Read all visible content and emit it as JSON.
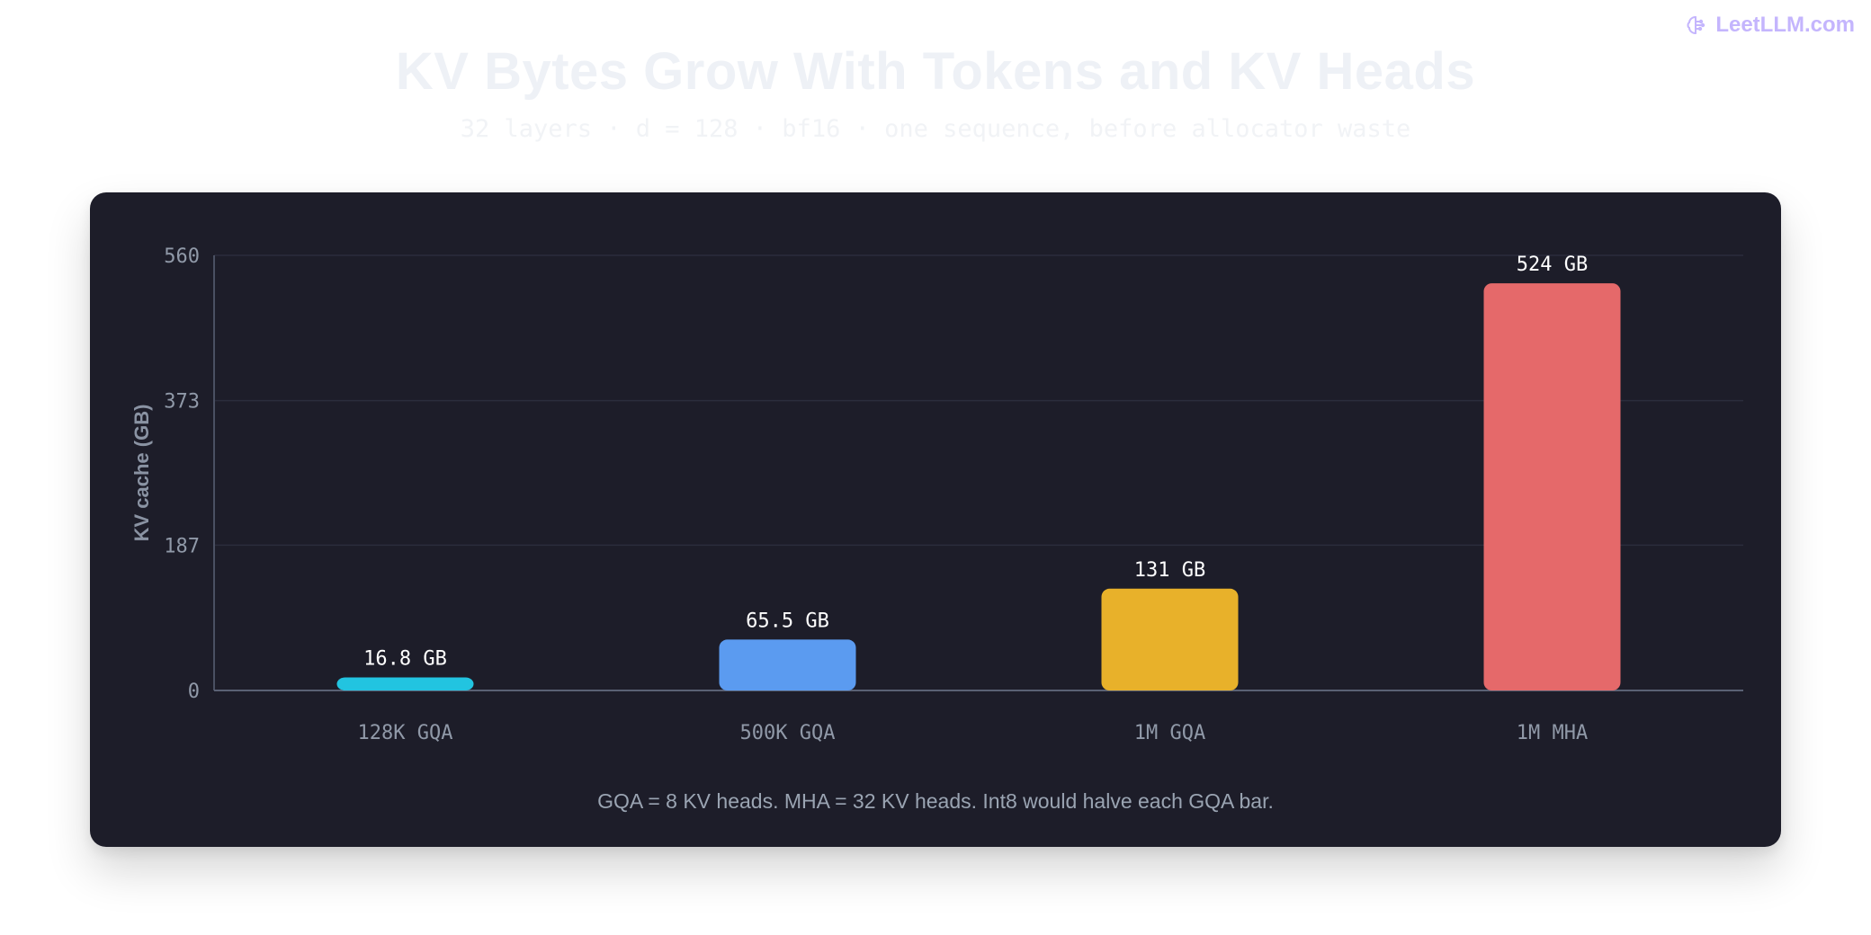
{
  "brand": {
    "name": "LeetLLM.com",
    "icon": "brain-icon"
  },
  "header": {
    "title": "KV Bytes Grow With Tokens and KV Heads",
    "subtitle": "32 layers · d = 128 · bf16 · one sequence, before allocator waste"
  },
  "footnote": "GQA = 8 KV heads. MHA = 32 KV heads. Int8 would halve each GQA bar.",
  "chart_data": {
    "type": "bar",
    "categories": [
      "128K GQA",
      "500K GQA",
      "1M GQA",
      "1M MHA"
    ],
    "values": [
      16.8,
      65.5,
      131,
      524
    ],
    "value_labels": [
      "16.8 GB",
      "65.5 GB",
      "131 GB",
      "524 GB"
    ],
    "colors": [
      "#22c4e0",
      "#5b9bf0",
      "#e8b12a",
      "#e5696a"
    ],
    "ylabel": "KV cache (GB)",
    "xlabel": "",
    "ylim": [
      0,
      560
    ],
    "yticks": [
      0,
      187,
      373,
      560
    ],
    "grid": true
  }
}
